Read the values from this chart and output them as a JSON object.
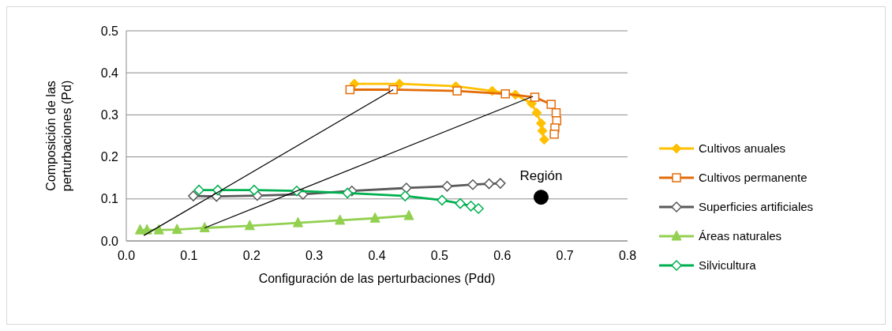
{
  "chart_data": {
    "type": "line",
    "xlabel": "Configuración de las perturbaciones (Pdd)",
    "ylabel": "Composición de las perturbaciones (Pd)",
    "xlim": [
      0,
      0.8
    ],
    "xticks": [
      {
        "value": 0,
        "label": "0.0"
      },
      0.1,
      0.2,
      0.3,
      0.4,
      0.5,
      0.6,
      0.7,
      0.8
    ],
    "ylim": [
      0,
      0.5
    ],
    "yticks": [
      {
        "value": 0,
        "label": "0.0"
      },
      0.1,
      0.2,
      0.3,
      0.4,
      0.5
    ],
    "grid": "y",
    "legend": "right",
    "series": [
      {
        "name": "Cultivos anuales",
        "color": "#ffc000",
        "marker": "diamond",
        "x": [
          0.364,
          0.436,
          0.526,
          0.584,
          0.621,
          0.647,
          0.655,
          0.662,
          0.664,
          0.667
        ],
        "values": [
          0.374,
          0.374,
          0.368,
          0.357,
          0.348,
          0.327,
          0.305,
          0.28,
          0.262,
          0.241
        ]
      },
      {
        "name": "Cultivos permanente",
        "color": "#e36c09",
        "marker": "square",
        "x": [
          0.357,
          0.426,
          0.528,
          0.605,
          0.652,
          0.678,
          0.686,
          0.687,
          0.684,
          0.683
        ],
        "values": [
          0.36,
          0.36,
          0.357,
          0.35,
          0.342,
          0.325,
          0.305,
          0.286,
          0.269,
          0.254
        ]
      },
      {
        "name": "Superficies artificiales",
        "color": "#595959",
        "marker": "diamond",
        "x": [
          0.107,
          0.144,
          0.209,
          0.282,
          0.36,
          0.447,
          0.512,
          0.553,
          0.579,
          0.597
        ],
        "values": [
          0.107,
          0.106,
          0.108,
          0.111,
          0.119,
          0.126,
          0.13,
          0.134,
          0.136,
          0.137
        ]
      },
      {
        "name": "Áreas naturales",
        "color": "#92d050",
        "marker": "triangle",
        "x": [
          0.022,
          0.033,
          0.052,
          0.081,
          0.125,
          0.197,
          0.274,
          0.341,
          0.397,
          0.451
        ],
        "values": [
          0.026,
          0.026,
          0.026,
          0.027,
          0.031,
          0.036,
          0.043,
          0.049,
          0.054,
          0.06
        ]
      },
      {
        "name": "Silvicultura",
        "color": "#00b050",
        "marker": "diamond",
        "x": [
          0.116,
          0.146,
          0.204,
          0.272,
          0.353,
          0.445,
          0.504,
          0.533,
          0.55,
          0.562
        ],
        "values": [
          0.121,
          0.121,
          0.121,
          0.119,
          0.114,
          0.107,
          0.097,
          0.089,
          0.083,
          0.077
        ]
      },
      {
        "color": "#000000",
        "marker": "none",
        "x": [
          0.028,
          0.426
        ],
        "values": [
          0.013,
          0.36
        ]
      },
      {
        "color": "#000000",
        "marker": "none",
        "x": [
          0.125,
          0.649
        ],
        "values": [
          0.031,
          0.344
        ]
      },
      {
        "type": "scatter",
        "name": "Región",
        "color": "#000000",
        "marker": "circle",
        "x": [
          0.662
        ],
        "values": [
          0.104
        ]
      }
    ]
  }
}
